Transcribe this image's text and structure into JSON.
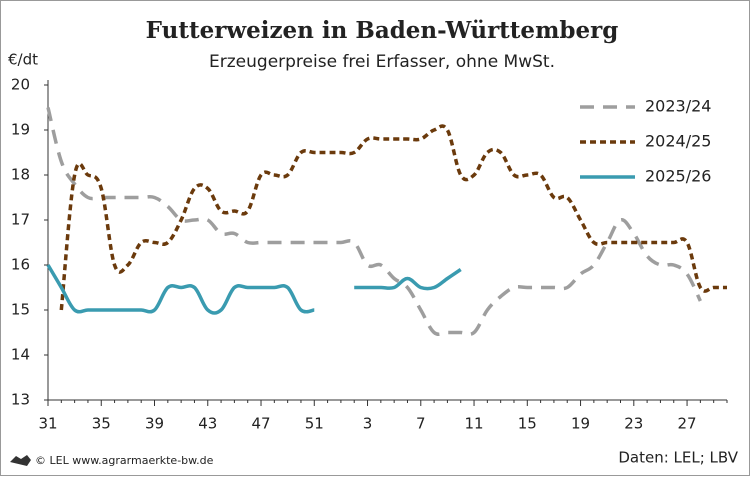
{
  "chart_data": {
    "type": "line",
    "title": "Futterweizen in Baden-Württemberg",
    "subtitle": "Erzeugerpreise frei Erfasser, ohne MwSt.",
    "y_label": "€/dt",
    "credit": "© LEL www.agrarmaerkte-bw.de",
    "source": "Daten: LEL; LBV",
    "categories": [
      31,
      null,
      null,
      null,
      35,
      null,
      null,
      null,
      39,
      null,
      null,
      null,
      43,
      null,
      null,
      null,
      47,
      null,
      null,
      null,
      51,
      null,
      null,
      null,
      3,
      null,
      null,
      null,
      7,
      null,
      null,
      null,
      11,
      null,
      null,
      null,
      15,
      null,
      null,
      null,
      19,
      null,
      null,
      null,
      23,
      null,
      null,
      null,
      27,
      null,
      null,
      null
    ],
    "ylim": [
      13,
      20
    ],
    "yticks": [
      13,
      14,
      15,
      16,
      17,
      18,
      19,
      20
    ],
    "grid": false,
    "legend": "upper right",
    "series": [
      {
        "name": "2023/24",
        "color": "#9e9e9e",
        "dash": "dashed",
        "values": [
          19.5,
          18.3,
          17.8,
          17.5,
          17.5,
          17.5,
          17.5,
          17.5,
          17.5,
          17.3,
          17.0,
          17.0,
          17.0,
          16.7,
          16.7,
          16.5,
          16.5,
          16.5,
          16.5,
          16.5,
          16.5,
          16.5,
          16.5,
          16.5,
          16.0,
          16.0,
          15.7,
          15.5,
          15.0,
          14.5,
          14.5,
          14.5,
          14.5,
          15.0,
          15.3,
          15.5,
          15.5,
          15.5,
          15.5,
          15.5,
          15.8,
          16.0,
          16.5,
          17.0,
          16.7,
          16.2,
          16.0,
          16.0,
          15.8,
          15.2,
          null,
          null
        ]
      },
      {
        "name": "2024/25",
        "color": "#6b3a0c",
        "dash": "dotted",
        "values": [
          null,
          15.0,
          18.0,
          18.0,
          17.7,
          16.0,
          16.0,
          16.5,
          16.5,
          16.5,
          17.0,
          17.7,
          17.7,
          17.2,
          17.2,
          17.2,
          18.0,
          18.0,
          18.0,
          18.5,
          18.5,
          18.5,
          18.5,
          18.5,
          18.8,
          18.8,
          18.8,
          18.8,
          18.8,
          19.0,
          19.0,
          18.0,
          18.0,
          18.5,
          18.5,
          18.0,
          18.0,
          18.0,
          17.5,
          17.5,
          17.0,
          16.5,
          16.5,
          16.5,
          16.5,
          16.5,
          16.5,
          16.5,
          16.5,
          15.5,
          15.5,
          15.5
        ]
      },
      {
        "name": "2025/26",
        "color": "#3a9bb0",
        "dash": "solid",
        "values": [
          16.0,
          15.5,
          15.0,
          15.0,
          15.0,
          15.0,
          15.0,
          15.0,
          15.0,
          15.5,
          15.5,
          15.5,
          15.0,
          15.0,
          15.5,
          15.5,
          15.5,
          15.5,
          15.5,
          15.0,
          15.0,
          null,
          null,
          15.5,
          15.5,
          15.5,
          15.5,
          15.7,
          15.5,
          15.5,
          15.7,
          15.9,
          null,
          null,
          null,
          null,
          null,
          null,
          null,
          null,
          null,
          null,
          null,
          null,
          null,
          null,
          null,
          null,
          null,
          null,
          null,
          null
        ]
      }
    ]
  }
}
